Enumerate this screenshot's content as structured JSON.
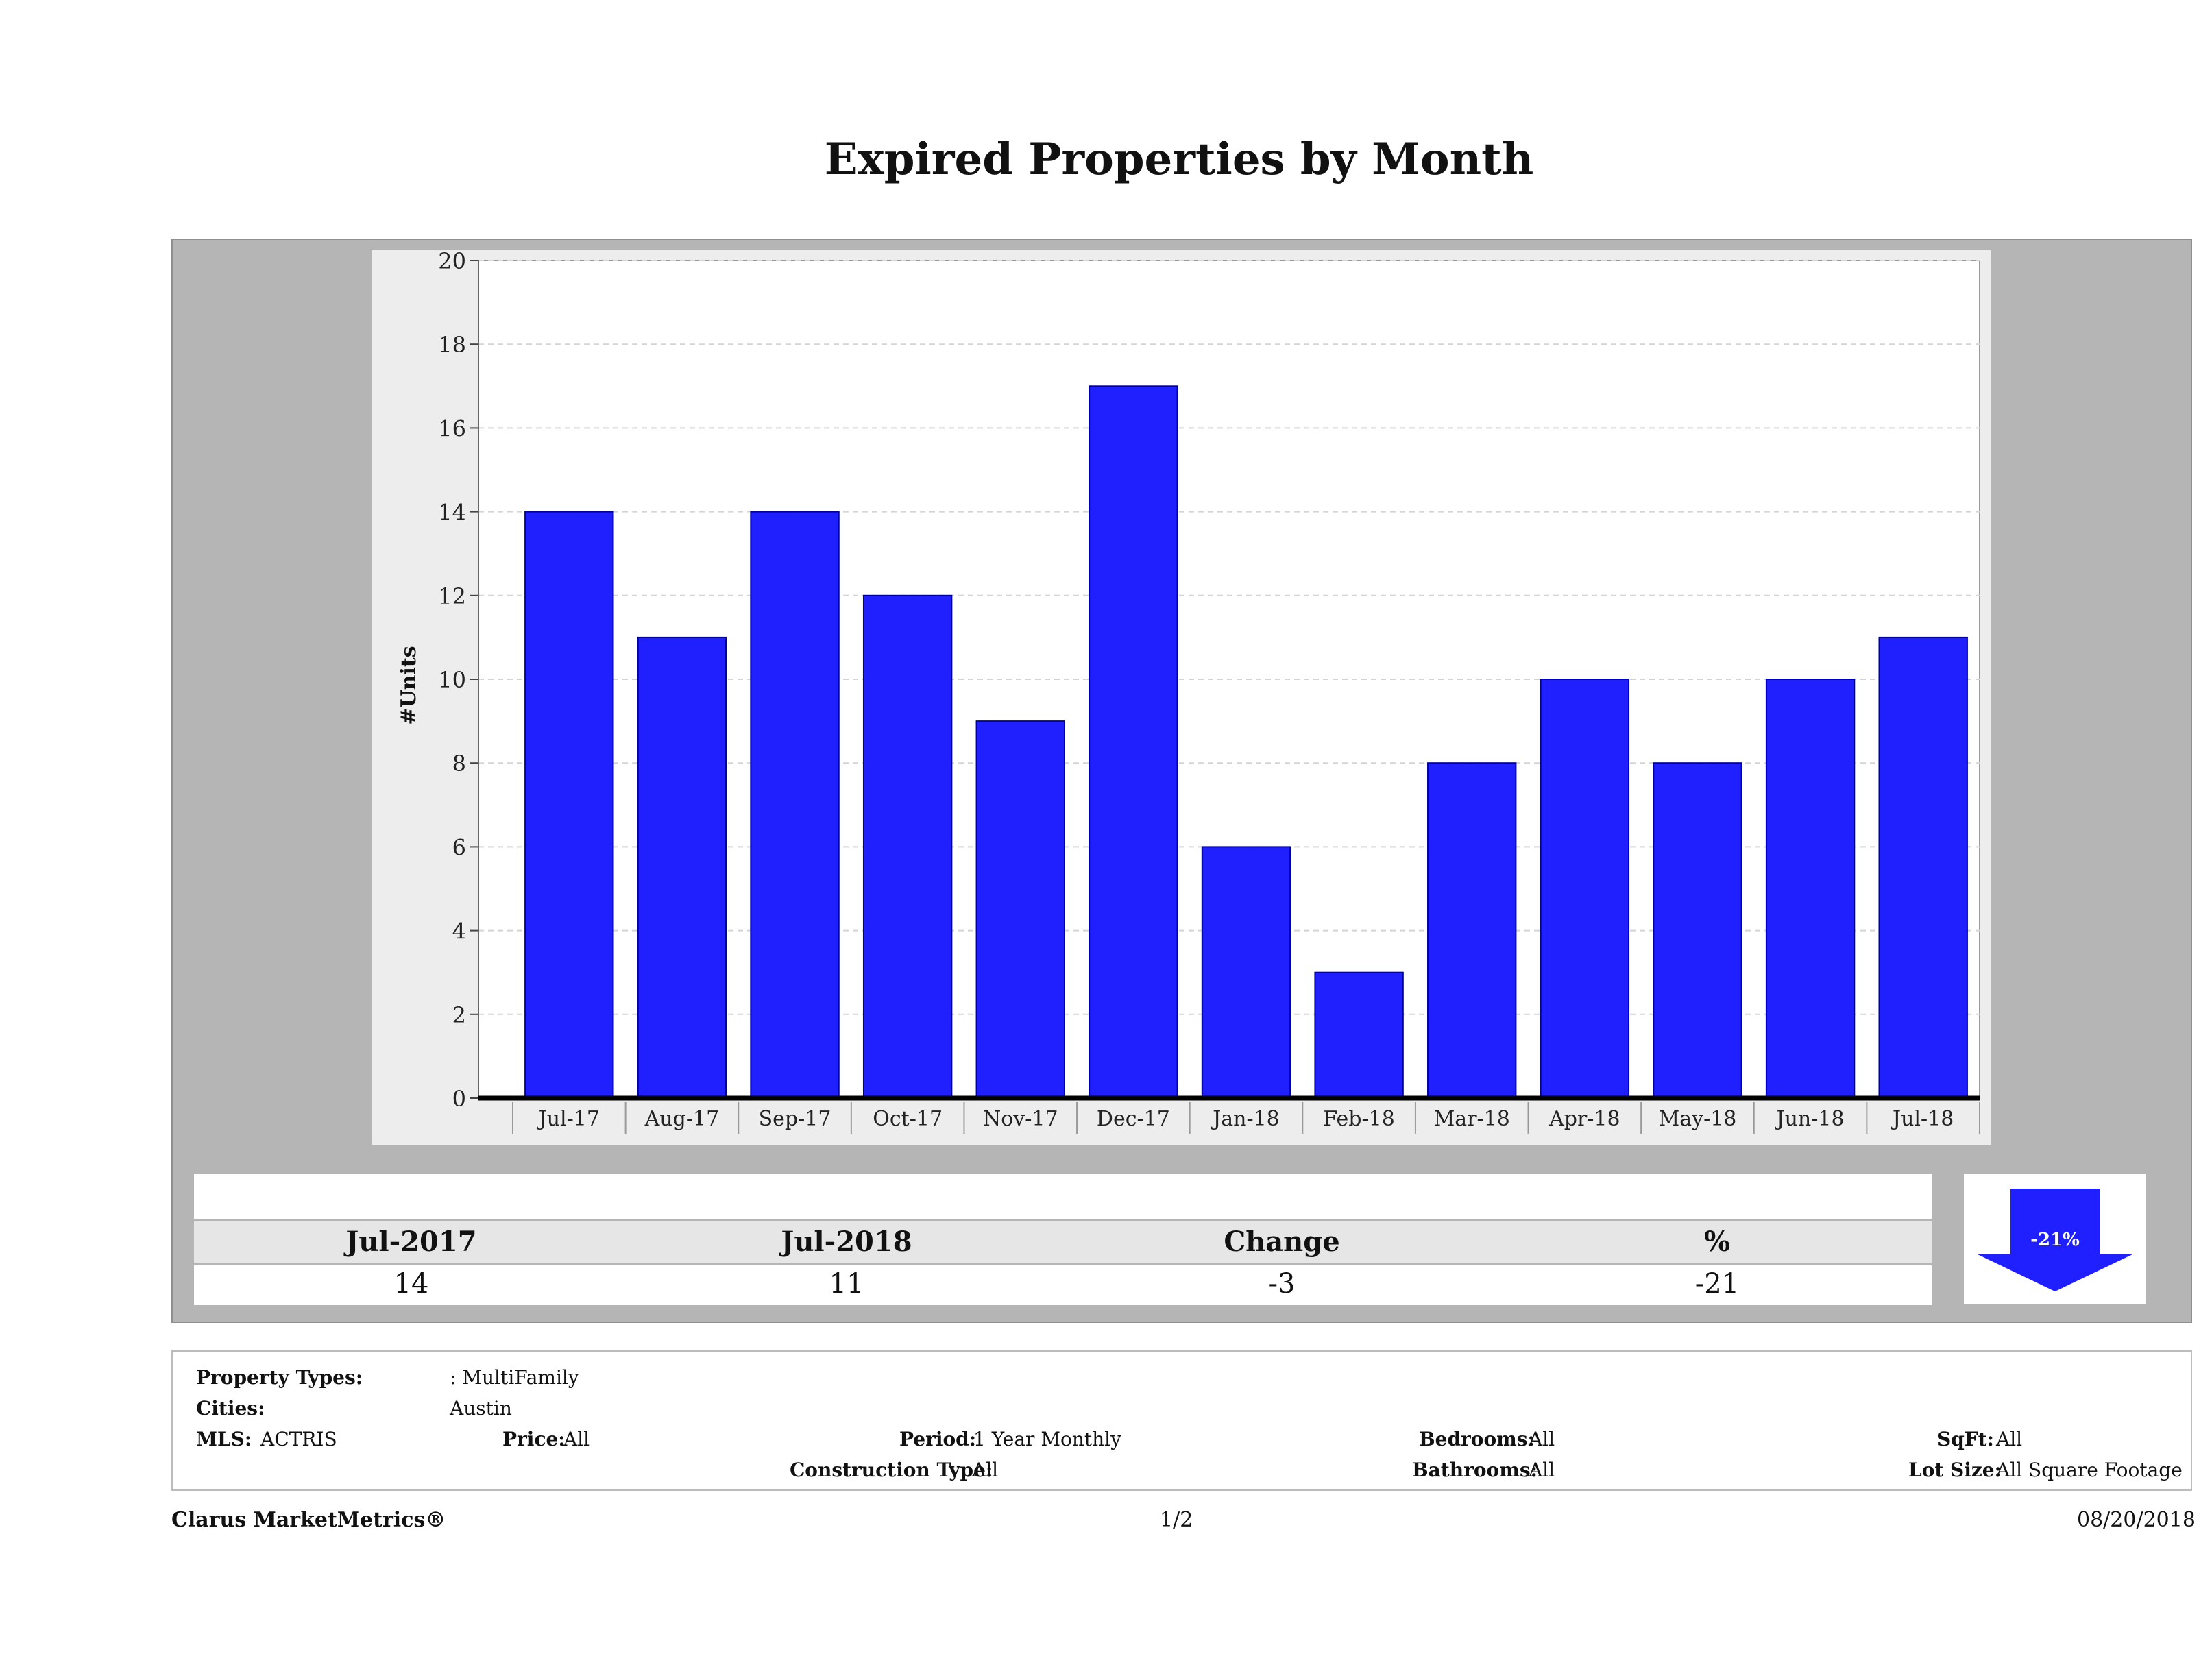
{
  "title": "Expired Properties by Month",
  "chart_data": {
    "type": "bar",
    "categories": [
      "Jul-17",
      "Aug-17",
      "Sep-17",
      "Oct-17",
      "Nov-17",
      "Dec-17",
      "Jan-18",
      "Feb-18",
      "Mar-18",
      "Apr-18",
      "May-18",
      "Jun-18",
      "Jul-18"
    ],
    "values": [
      14,
      11,
      14,
      12,
      9,
      17,
      6,
      3,
      8,
      10,
      8,
      10,
      11
    ],
    "title": "Expired Properties by Month",
    "xlabel": "",
    "ylabel": "#Units",
    "ylim": [
      0,
      20
    ],
    "yticks": [
      0,
      2,
      4,
      6,
      8,
      10,
      12,
      14,
      16,
      18,
      20
    ],
    "grid": true,
    "bar_color": "#2020ff"
  },
  "summary": {
    "headers": [
      "Jul-2017",
      "Jul-2018",
      "Change",
      "%"
    ],
    "values": [
      "14",
      "11",
      "-3",
      "-21"
    ],
    "change_badge": "-21%",
    "arrow_color": "#2020ff",
    "arrow_direction": "down"
  },
  "filters": {
    "property_types_label": "Property Types:",
    "property_types_value": ": MultiFamily",
    "cities_label": "Cities:",
    "cities_value": "Austin",
    "mls_label": "MLS:",
    "mls_value": "ACTRIS",
    "price_label": "Price:",
    "price_value": "All",
    "period_label": "Period:",
    "period_value": "1 Year Monthly",
    "construction_label": "Construction Type:",
    "construction_value": "All",
    "bedrooms_label": "Bedrooms:",
    "bedrooms_value": "All",
    "bathrooms_label": "Bathrooms:",
    "bathrooms_value": "All",
    "sqft_label": "SqFt:",
    "sqft_value": "All",
    "lotsize_label": "Lot Size:",
    "lotsize_value": "All Square Footage"
  },
  "footer": {
    "brand": "Clarus MarketMetrics®",
    "page": "1/2",
    "date": "08/20/2018"
  }
}
